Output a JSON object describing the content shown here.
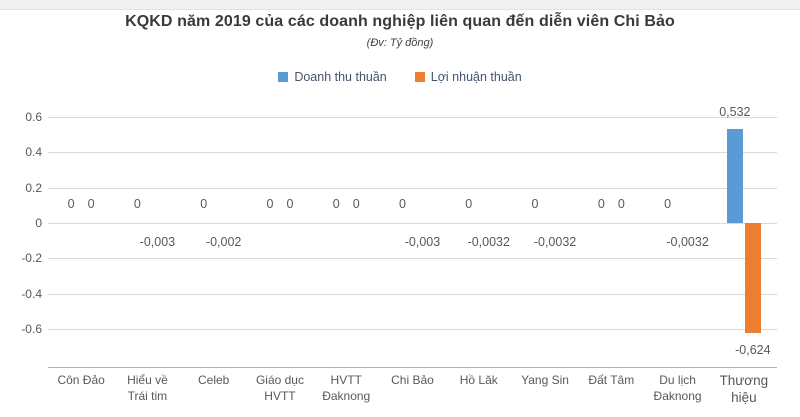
{
  "page": {
    "title": "KQKD năm 2019 của các doanh nghiệp liên quan đến diễn viên Chi Bảo",
    "subtitle": "(Đv: Tỷ đồng)"
  },
  "chart_data": {
    "type": "bar",
    "title": "KQKD năm 2019 của các doanh nghiệp liên quan đến diễn viên Chi Bảo",
    "unit_note": "(Đv: Tỷ đồng)",
    "categories": [
      "Côn Đảo",
      "Hiểu về Trái tim",
      "Celeb",
      "Giáo dục HVTT",
      "HVTT Đaknong",
      "Chi Bảo",
      "Hồ Lăk",
      "Yang Sin",
      "Đất Tâm",
      "Du lịch Đaknong",
      "Thương hiệu"
    ],
    "category_lines": [
      [
        "Côn Đảo"
      ],
      [
        "Hiểu về",
        "Trái tim"
      ],
      [
        "Celeb"
      ],
      [
        "Giáo dục",
        "HVTT"
      ],
      [
        "HVTT",
        "Đaknong"
      ],
      [
        "Chi Bảo"
      ],
      [
        "Hồ Lăk"
      ],
      [
        "Yang Sin"
      ],
      [
        "Đất Tâm"
      ],
      [
        "Du lịch",
        "Đaknong"
      ],
      [
        "Thương",
        "hiệu"
      ]
    ],
    "series": [
      {
        "name": "Doanh thu thuần",
        "color": "#5B9BD5",
        "values": [
          0,
          0,
          0,
          0,
          0,
          0,
          0,
          0,
          0,
          0,
          0.532
        ],
        "labels": [
          "0",
          "0",
          "0",
          "0",
          "0",
          "0",
          "0",
          "0",
          "0",
          "0",
          "0,532"
        ]
      },
      {
        "name": "Lợi nhuận thuần",
        "color": "#ED7D31",
        "values": [
          0,
          -0.003,
          -0.002,
          0,
          0,
          -0.003,
          -0.0032,
          -0.0032,
          0,
          -0.0032,
          -0.624
        ],
        "labels": [
          "0",
          "-0,003",
          "-0,002",
          "0",
          "0",
          "-0,003",
          "-0,0032",
          "-0,0032",
          "0",
          "-0,0032",
          "-0,624"
        ]
      }
    ],
    "y_ticks": [
      0.6,
      0.4,
      0.2,
      0,
      -0.2,
      -0.4,
      -0.6
    ],
    "y_tick_labels": [
      "0.6",
      "0.4",
      "0.2",
      "0",
      "-0.2",
      "-0.4",
      "-0.6"
    ],
    "ylim": [
      -0.8,
      0.6
    ],
    "grid": true,
    "legend_position": "top",
    "xlabel": "",
    "ylabel": ""
  }
}
